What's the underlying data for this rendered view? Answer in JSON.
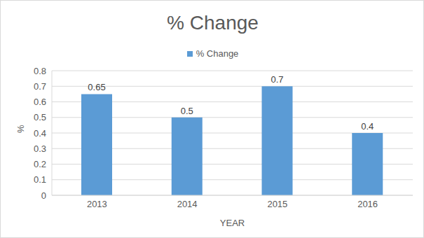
{
  "chart_data": {
    "type": "bar",
    "title": "% Change",
    "categories": [
      "2013",
      "2014",
      "2015",
      "2016"
    ],
    "series": [
      {
        "name": "% Change",
        "color": "#5b9bd5",
        "values": [
          0.65,
          0.5,
          0.7,
          0.4
        ]
      }
    ],
    "x_label": "YEAR",
    "y_label": "%",
    "ylim": [
      0,
      0.8
    ],
    "yticks": [
      0,
      0.1,
      0.2,
      0.3,
      0.4,
      0.5,
      0.6,
      0.7,
      0.8
    ],
    "grid": true,
    "data_labels": true,
    "legend": "top"
  }
}
